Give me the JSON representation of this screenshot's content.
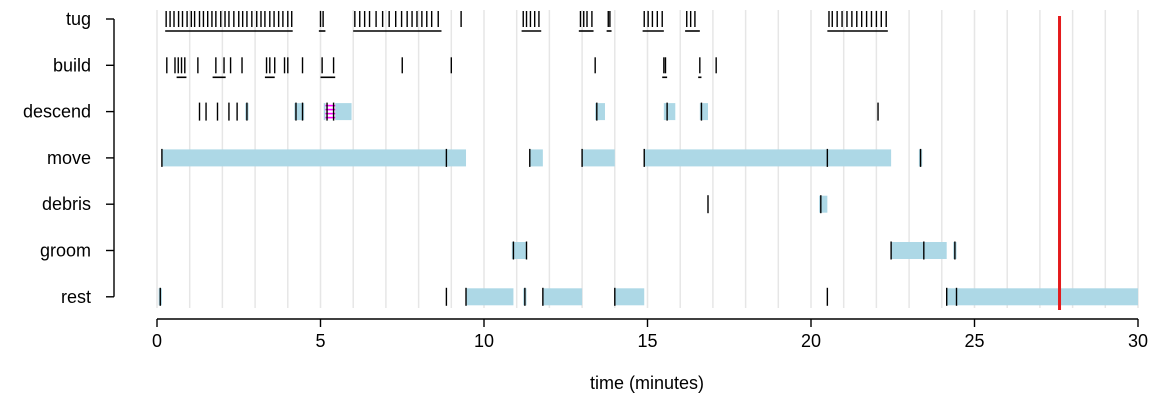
{
  "chart_data": {
    "type": "timeline",
    "xlabel": "time (minutes)",
    "ylabel": "",
    "xlim": [
      0,
      30
    ],
    "xticks": [
      0,
      5,
      10,
      15,
      20,
      25,
      30
    ],
    "grid": "vertical, every 1 minute",
    "colors": {
      "interval_fill": "#add8e6",
      "event_tick": "#000000",
      "marker_line": "#e41a1c",
      "highlight": "#ff00ff",
      "grid": "#e6e6e6"
    },
    "marker_time": 27.6,
    "behaviors": [
      {
        "name": "tug",
        "events": [
          0.28,
          0.4,
          0.52,
          0.66,
          0.78,
          0.92,
          1.05,
          1.15,
          1.3,
          1.42,
          1.55,
          1.68,
          1.8,
          1.95,
          2.08,
          2.2,
          2.35,
          2.5,
          2.62,
          2.75,
          2.9,
          3.05,
          3.18,
          3.3,
          3.45,
          3.58,
          3.72,
          3.85,
          4.0,
          4.12,
          5.0,
          5.08,
          6.05,
          6.2,
          6.35,
          6.5,
          6.7,
          6.9,
          7.1,
          7.3,
          7.48,
          7.65,
          7.8,
          7.95,
          8.1,
          8.25,
          8.4,
          8.6,
          9.3,
          11.2,
          11.3,
          11.42,
          11.55,
          11.68,
          12.95,
          13.05,
          13.15,
          13.3,
          13.8,
          13.85,
          14.9,
          15.02,
          15.15,
          15.3,
          15.45,
          16.2,
          16.32,
          16.45,
          20.55,
          20.65,
          20.8,
          20.95,
          21.1,
          21.25,
          21.4,
          21.55,
          21.7,
          21.85,
          22.0,
          22.15,
          22.3
        ],
        "bouts": [
          [
            0.25,
            4.15
          ],
          [
            4.95,
            5.15
          ],
          [
            6.0,
            8.7
          ],
          [
            11.15,
            11.75
          ],
          [
            12.9,
            13.35
          ],
          [
            13.75,
            13.9
          ],
          [
            14.85,
            15.5
          ],
          [
            16.15,
            16.6
          ],
          [
            20.5,
            22.35
          ]
        ]
      },
      {
        "name": "build",
        "events": [
          0.3,
          0.55,
          0.65,
          0.75,
          0.85,
          1.25,
          1.8,
          2.05,
          2.25,
          2.6,
          3.35,
          3.45,
          3.6,
          3.9,
          4.0,
          4.45,
          5.05,
          5.4,
          7.5,
          9.0,
          13.4,
          15.5,
          15.55,
          16.6,
          17.1
        ],
        "bouts": [
          [
            0.6,
            0.9
          ],
          [
            1.7,
            2.1
          ],
          [
            3.3,
            3.6
          ],
          [
            5.0,
            5.45
          ],
          [
            15.45,
            15.6
          ],
          [
            16.55,
            16.65
          ]
        ]
      },
      {
        "name": "descend",
        "events": [
          1.3,
          1.5,
          1.85,
          2.2,
          2.45,
          2.75,
          4.25,
          4.45,
          5.2,
          5.4,
          13.45,
          15.6,
          16.65,
          22.05
        ],
        "intervals": [
          [
            2.7,
            2.8
          ],
          [
            4.2,
            4.5
          ],
          [
            5.1,
            5.95
          ],
          [
            13.4,
            13.7
          ],
          [
            15.5,
            15.85
          ],
          [
            16.6,
            16.85
          ]
        ],
        "highlight": [
          5.15,
          5.45
        ]
      },
      {
        "name": "move",
        "events": [
          0.15,
          8.85,
          11.4,
          13.0,
          14.9,
          20.5,
          23.35
        ],
        "intervals": [
          [
            0.15,
            9.45
          ],
          [
            11.4,
            11.8
          ],
          [
            13.0,
            14.0
          ],
          [
            14.9,
            22.45
          ],
          [
            23.3,
            23.4
          ]
        ]
      },
      {
        "name": "debris",
        "events": [
          16.85,
          20.3
        ],
        "intervals": [
          [
            20.25,
            20.5
          ]
        ]
      },
      {
        "name": "groom",
        "events": [
          10.9,
          11.3,
          22.45,
          23.45,
          24.4
        ],
        "intervals": [
          [
            10.85,
            11.3
          ],
          [
            22.45,
            24.15
          ],
          [
            24.35,
            24.45
          ]
        ]
      },
      {
        "name": "rest",
        "events": [
          0.1,
          8.85,
          9.45,
          11.25,
          11.8,
          14.0,
          20.5,
          24.15,
          24.45,
          27.6
        ],
        "intervals": [
          [
            0.05,
            0.15
          ],
          [
            9.45,
            10.9
          ],
          [
            11.2,
            11.3
          ],
          [
            11.8,
            13.0
          ],
          [
            14.0,
            14.9
          ],
          [
            24.15,
            30.0
          ]
        ]
      }
    ]
  }
}
